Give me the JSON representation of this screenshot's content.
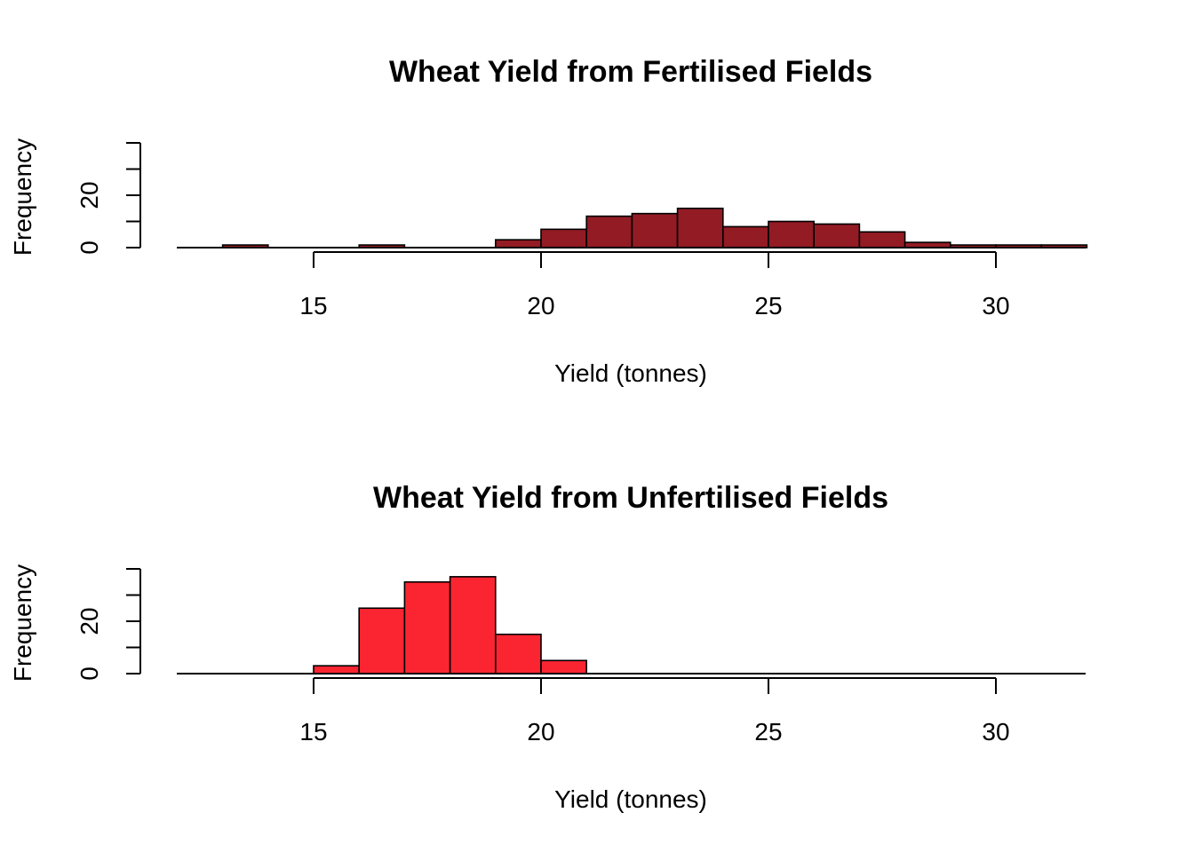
{
  "chart_data": [
    {
      "type": "bar",
      "title": "Wheat Yield from Fertilised Fields",
      "xlabel": "Yield (tonnes)",
      "ylabel": "Frequency",
      "bar_color": "#931b24",
      "xlim": [
        12,
        32
      ],
      "ylim": [
        0,
        40
      ],
      "x_ticks": [
        15,
        20,
        25,
        30
      ],
      "x_axis_range": [
        15,
        30
      ],
      "y_ticks": [
        0,
        10,
        20,
        30,
        40
      ],
      "y_tick_labels": [
        0,
        20
      ],
      "bins": [
        {
          "from": 13,
          "to": 14,
          "count": 1
        },
        {
          "from": 14,
          "to": 15,
          "count": 0
        },
        {
          "from": 15,
          "to": 16,
          "count": 0
        },
        {
          "from": 16,
          "to": 17,
          "count": 1
        },
        {
          "from": 17,
          "to": 18,
          "count": 0
        },
        {
          "from": 18,
          "to": 19,
          "count": 0
        },
        {
          "from": 19,
          "to": 20,
          "count": 3
        },
        {
          "from": 20,
          "to": 21,
          "count": 7
        },
        {
          "from": 21,
          "to": 22,
          "count": 12
        },
        {
          "from": 22,
          "to": 23,
          "count": 13
        },
        {
          "from": 23,
          "to": 24,
          "count": 15
        },
        {
          "from": 24,
          "to": 25,
          "count": 8
        },
        {
          "from": 25,
          "to": 26,
          "count": 10
        },
        {
          "from": 26,
          "to": 27,
          "count": 9
        },
        {
          "from": 27,
          "to": 28,
          "count": 6
        },
        {
          "from": 28,
          "to": 29,
          "count": 2
        },
        {
          "from": 29,
          "to": 30,
          "count": 1
        },
        {
          "from": 30,
          "to": 31,
          "count": 1
        },
        {
          "from": 31,
          "to": 32,
          "count": 1
        }
      ]
    },
    {
      "type": "bar",
      "title": "Wheat Yield from Unfertilised Fields",
      "xlabel": "Yield (tonnes)",
      "ylabel": "Frequency",
      "bar_color": "#fb2532",
      "xlim": [
        12,
        32
      ],
      "ylim": [
        0,
        40
      ],
      "x_ticks": [
        15,
        20,
        25,
        30
      ],
      "x_axis_range": [
        15,
        30
      ],
      "y_ticks": [
        0,
        10,
        20,
        30,
        40
      ],
      "y_tick_labels": [
        0,
        20
      ],
      "bins": [
        {
          "from": 13,
          "to": 14,
          "count": 0
        },
        {
          "from": 14,
          "to": 15,
          "count": 0
        },
        {
          "from": 15,
          "to": 16,
          "count": 3
        },
        {
          "from": 16,
          "to": 17,
          "count": 25
        },
        {
          "from": 17,
          "to": 18,
          "count": 35
        },
        {
          "from": 18,
          "to": 19,
          "count": 37
        },
        {
          "from": 19,
          "to": 20,
          "count": 15
        },
        {
          "from": 20,
          "to": 21,
          "count": 5
        },
        {
          "from": 21,
          "to": 22,
          "count": 0
        },
        {
          "from": 22,
          "to": 23,
          "count": 0
        },
        {
          "from": 23,
          "to": 24,
          "count": 0
        },
        {
          "from": 24,
          "to": 25,
          "count": 0
        },
        {
          "from": 25,
          "to": 26,
          "count": 0
        },
        {
          "from": 26,
          "to": 27,
          "count": 0
        },
        {
          "from": 27,
          "to": 28,
          "count": 0
        },
        {
          "from": 28,
          "to": 29,
          "count": 0
        },
        {
          "from": 29,
          "to": 30,
          "count": 0
        },
        {
          "from": 30,
          "to": 31,
          "count": 0
        },
        {
          "from": 31,
          "to": 32,
          "count": 0
        }
      ]
    }
  ]
}
